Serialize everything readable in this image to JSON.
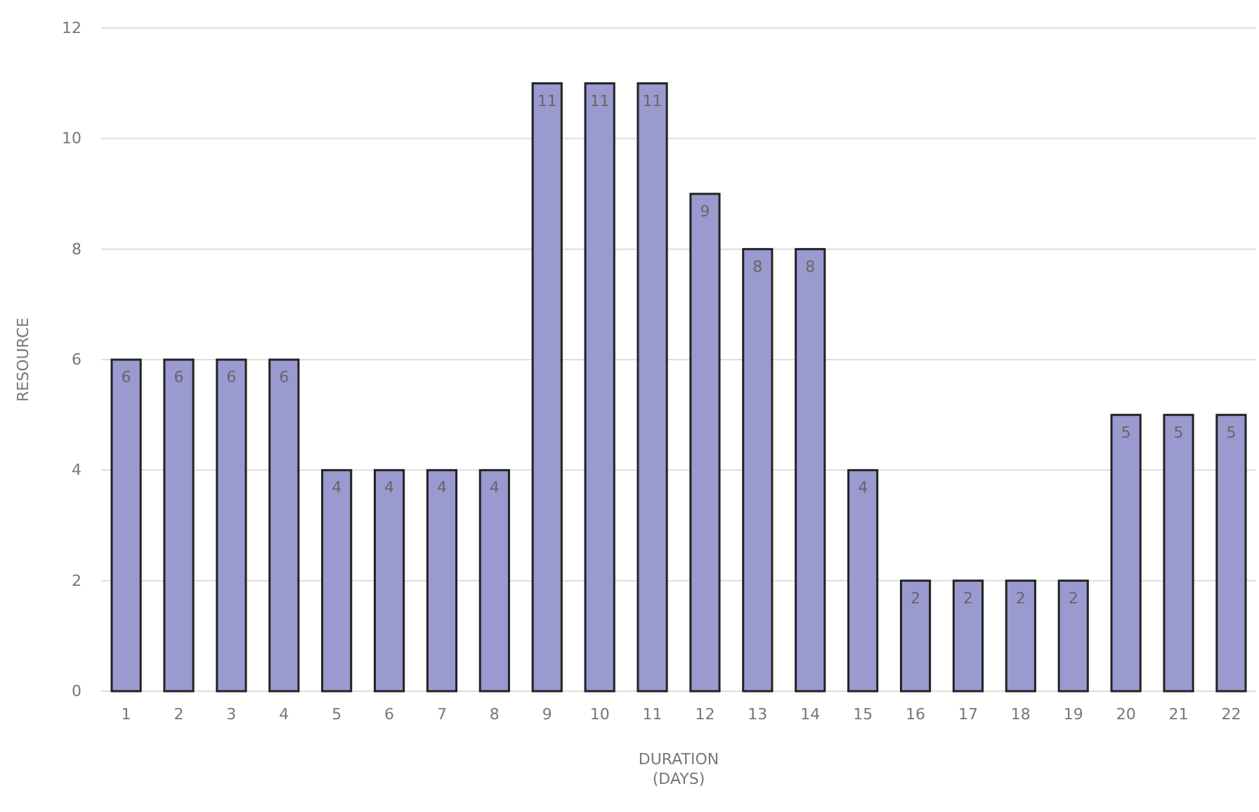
{
  "chart_data": {
    "type": "bar",
    "xlabel": "DURATION (DAYS)",
    "ylabel": "RESOURCE",
    "categories": [
      "1",
      "2",
      "3",
      "4",
      "5",
      "6",
      "7",
      "8",
      "9",
      "10",
      "11",
      "12",
      "13",
      "14",
      "15",
      "16",
      "17",
      "18",
      "19",
      "20",
      "21",
      "22"
    ],
    "values": [
      6,
      6,
      6,
      6,
      4,
      4,
      4,
      4,
      11,
      11,
      11,
      9,
      8,
      8,
      4,
      2,
      2,
      2,
      2,
      5,
      5,
      5
    ],
    "color": "#9a9ad0",
    "ylim": [
      0,
      12
    ],
    "yticks": [
      0,
      2,
      4,
      6,
      8,
      10,
      12
    ],
    "grid": "y",
    "data_labels": true
  }
}
